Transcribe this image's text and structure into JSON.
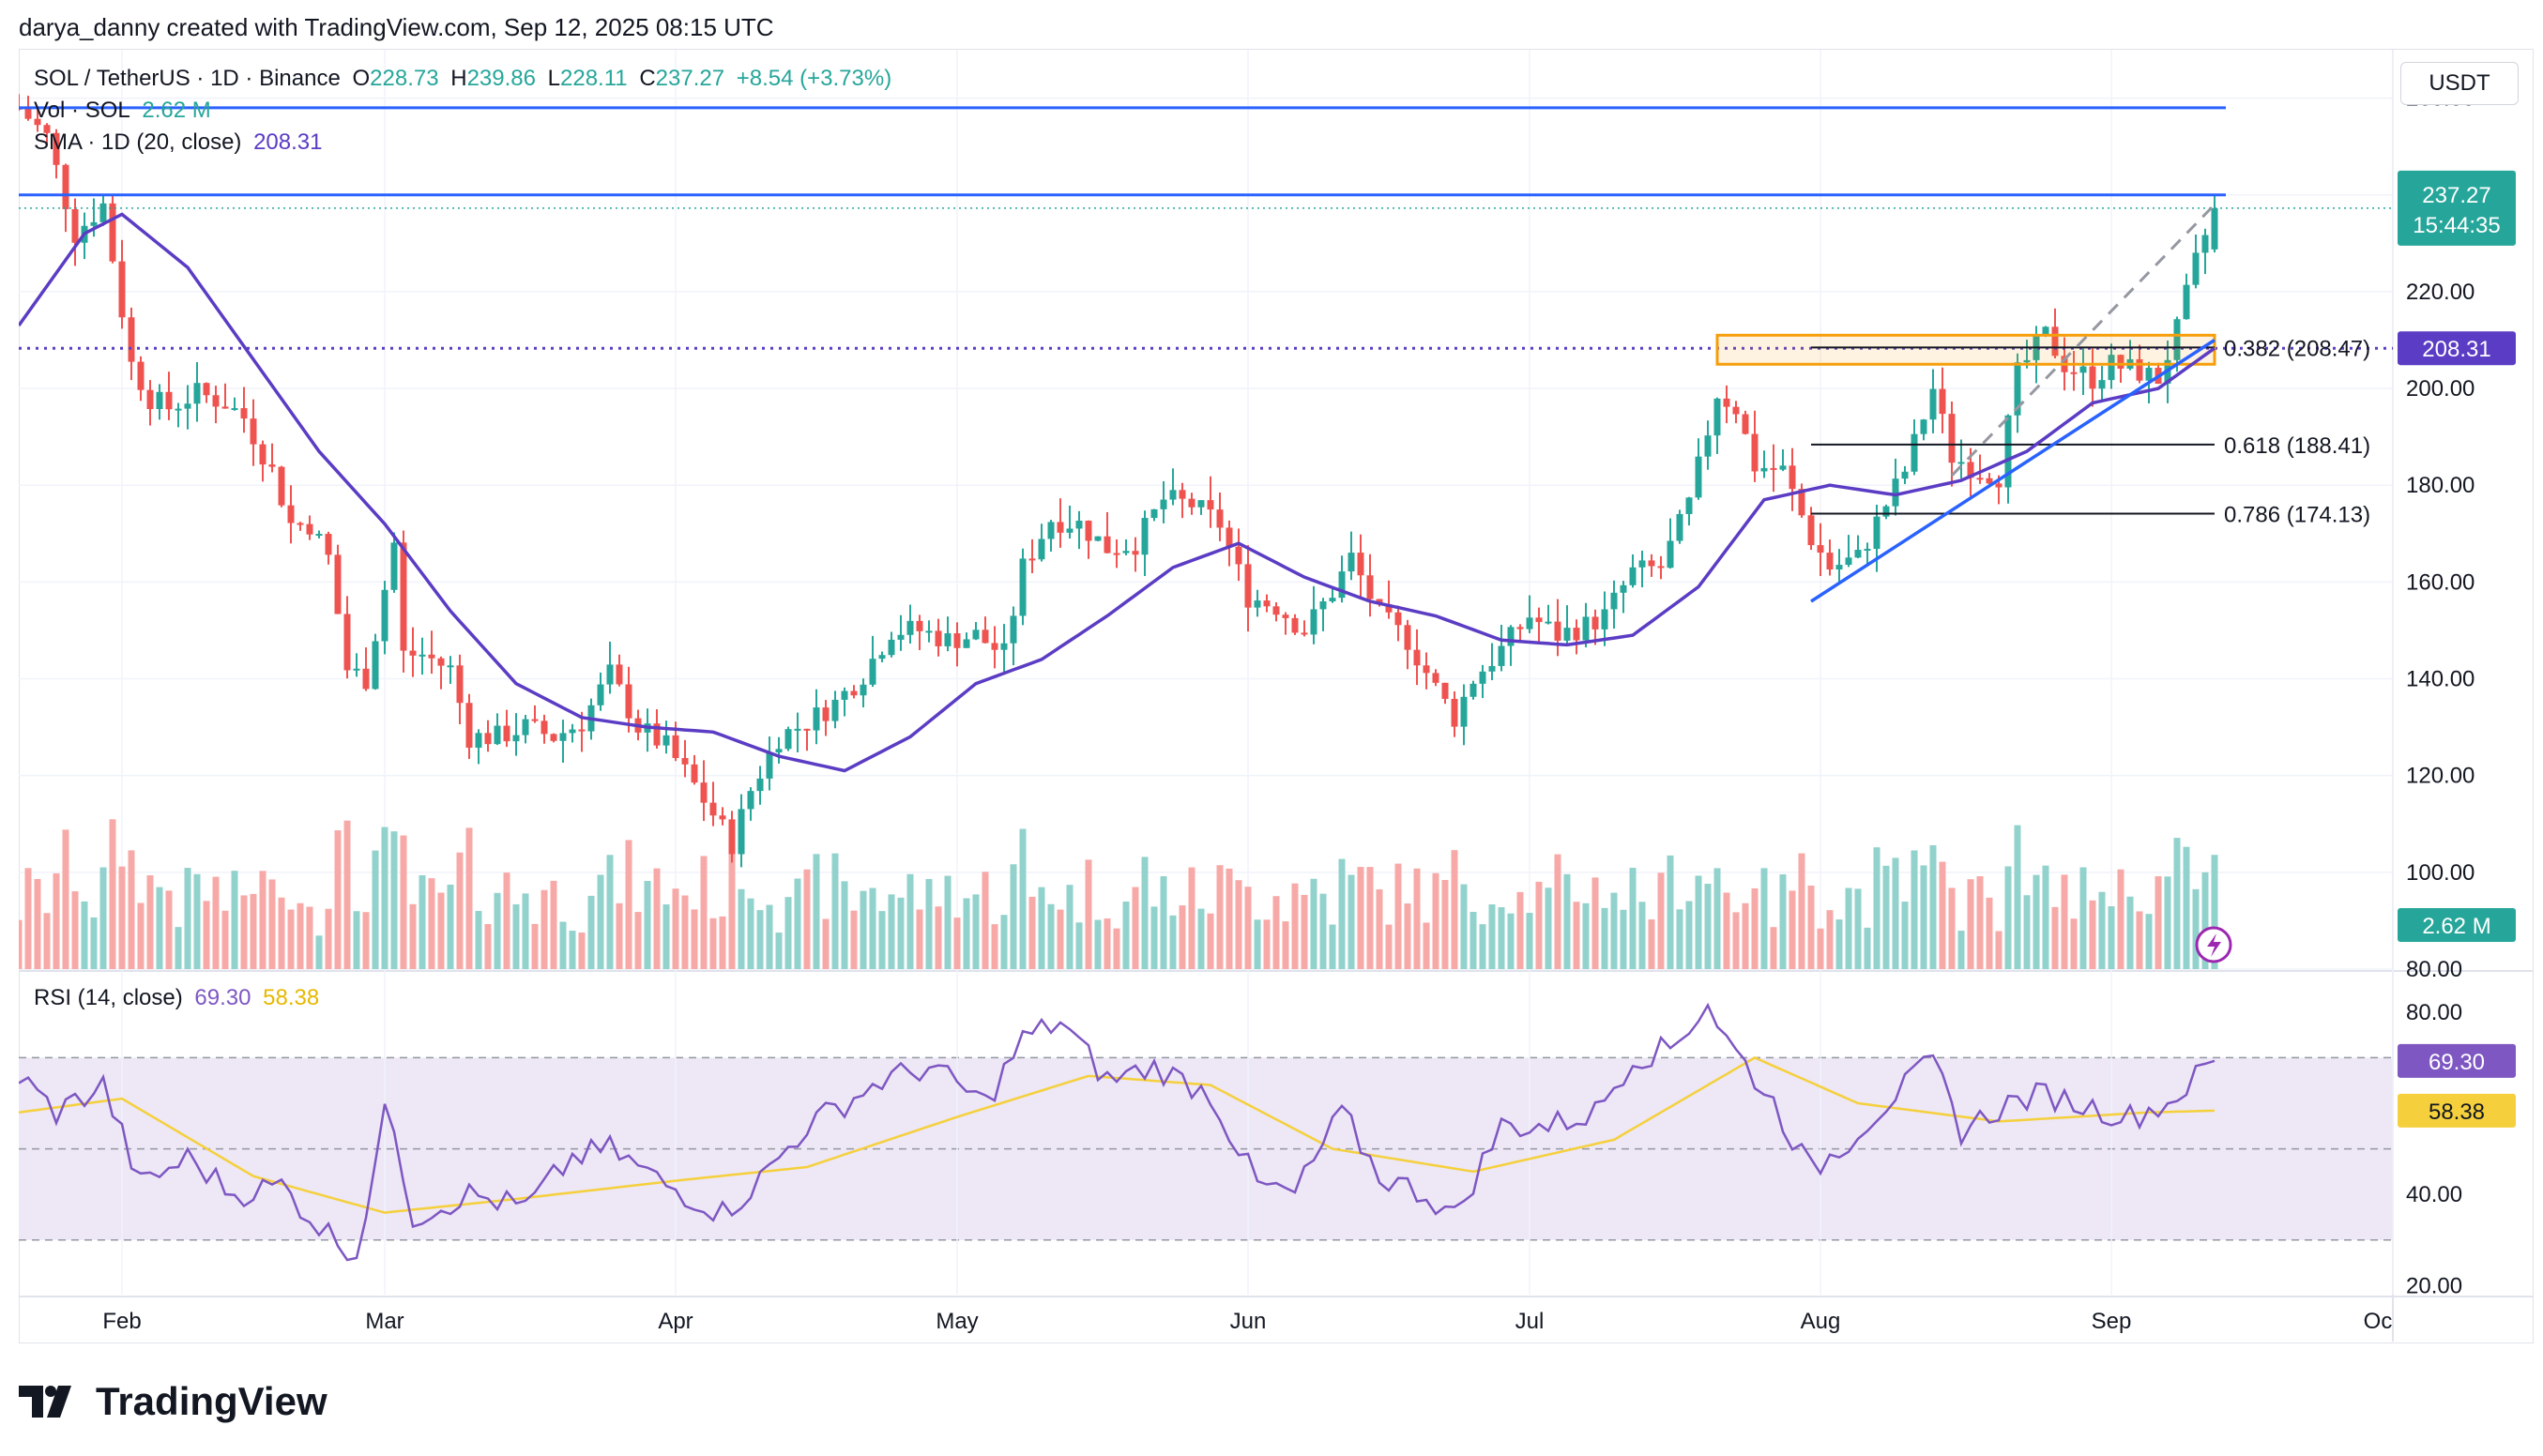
{
  "header": {
    "attribution": "darya_danny created with TradingView.com, Sep 12, 2025 08:15 UTC"
  },
  "legend": {
    "symbol": "SOL / TetherUS · 1D · Binance",
    "o_label": "O",
    "o_value": "228.73",
    "h_label": "H",
    "h_value": "239.86",
    "l_label": "L",
    "l_value": "228.11",
    "c_label": "C",
    "c_value": "237.27",
    "change": "+8.54 (+3.73%)",
    "vol_label": "Vol · SOL",
    "vol_value": "2.62 M",
    "sma_label": "SMA · 1D (20, close)",
    "sma_value": "208.31",
    "rsi_label": "RSI (14, close)",
    "rsi_value": "69.30",
    "rsi_ma_value": "58.38"
  },
  "toolbar": {
    "currency_button": "USDT"
  },
  "price_axis": {
    "ticks": [
      "260.00",
      "220.00",
      "200.00",
      "180.00",
      "160.00",
      "140.00",
      "120.00",
      "100.00",
      "80.00"
    ],
    "last_price_label": "237.27",
    "countdown_label": "15:44:35",
    "sma_label": "208.31",
    "volume_label": "2.62 M"
  },
  "rsi_axis": {
    "ticks": [
      "80.00",
      "40.00",
      "20.00"
    ],
    "rsi_label": "69.30",
    "rsi_ma_label": "58.38"
  },
  "time_axis": {
    "labels": [
      "Feb",
      "Mar",
      "Apr",
      "May",
      "Jun",
      "Jul",
      "Aug",
      "Sep",
      "Oc"
    ]
  },
  "fib_labels": [
    "0.382 (208.47)",
    "0.618 (188.41)",
    "0.786 (174.13)"
  ],
  "brand": {
    "name": "TradingView"
  },
  "colors": {
    "up": "#26a69a",
    "down": "#ef5350",
    "up_vol": "#92d2cc",
    "down_vol": "#f7a9a7",
    "sma": "#5b3cc4",
    "rsi": "#7e57c2",
    "rsi_ma": "#f5d03c",
    "hline": "#2962ff",
    "fib_box": "#f59e0b",
    "rsi_band": "#ede7f6"
  },
  "chart_data": {
    "type": "candlestick",
    "title": "SOL / TetherUS · 1D · Binance",
    "x_range": [
      "2025-01-21",
      "2025-10-01"
    ],
    "y_range": [
      80,
      270
    ],
    "horizontal_lines": [
      258,
      240,
      208.31
    ],
    "fibonacci_levels": [
      {
        "ratio": 0.382,
        "price": 208.47
      },
      {
        "ratio": 0.618,
        "price": 188.41
      },
      {
        "ratio": 0.786,
        "price": 174.13
      }
    ],
    "close_anchors": [
      [
        "2025-01-21",
        258
      ],
      [
        "2025-01-24",
        252
      ],
      [
        "2025-01-27",
        232
      ],
      [
        "2025-01-30",
        238
      ],
      [
        "2025-02-02",
        205
      ],
      [
        "2025-02-04",
        198
      ],
      [
        "2025-02-06",
        196
      ],
      [
        "2025-02-09",
        199
      ],
      [
        "2025-02-12",
        197
      ],
      [
        "2025-02-14",
        194
      ],
      [
        "2025-02-17",
        183
      ],
      [
        "2025-02-19",
        172
      ],
      [
        "2025-02-21",
        172
      ],
      [
        "2025-02-23",
        165
      ],
      [
        "2025-02-25",
        142
      ],
      [
        "2025-02-27",
        140
      ],
      [
        "2025-03-02",
        168
      ],
      [
        "2025-03-03",
        145
      ],
      [
        "2025-03-05",
        145
      ],
      [
        "2025-03-08",
        142
      ],
      [
        "2025-03-10",
        128
      ],
      [
        "2025-03-13",
        128
      ],
      [
        "2025-03-16",
        130
      ],
      [
        "2025-03-19",
        128
      ],
      [
        "2025-03-22",
        131
      ],
      [
        "2025-03-25",
        141
      ],
      [
        "2025-03-28",
        130
      ],
      [
        "2025-03-31",
        126
      ],
      [
        "2025-04-03",
        118
      ],
      [
        "2025-04-07",
        106
      ],
      [
        "2025-04-09",
        117
      ],
      [
        "2025-04-12",
        128
      ],
      [
        "2025-04-15",
        131
      ],
      [
        "2025-04-18",
        135
      ],
      [
        "2025-04-21",
        141
      ],
      [
        "2025-04-24",
        150
      ],
      [
        "2025-04-27",
        150
      ],
      [
        "2025-04-30",
        148
      ],
      [
        "2025-05-03",
        149
      ],
      [
        "2025-05-06",
        145
      ],
      [
        "2025-05-08",
        163
      ],
      [
        "2025-05-11",
        173
      ],
      [
        "2025-05-14",
        172
      ],
      [
        "2025-05-17",
        167
      ],
      [
        "2025-05-20",
        168
      ],
      [
        "2025-05-23",
        177
      ],
      [
        "2025-05-26",
        176
      ],
      [
        "2025-05-29",
        172
      ],
      [
        "2025-06-01",
        157
      ],
      [
        "2025-06-04",
        155
      ],
      [
        "2025-06-07",
        150
      ],
      [
        "2025-06-10",
        158
      ],
      [
        "2025-06-12",
        165
      ],
      [
        "2025-06-15",
        153
      ],
      [
        "2025-06-18",
        148
      ],
      [
        "2025-06-21",
        138
      ],
      [
        "2025-06-23",
        132
      ],
      [
        "2025-06-25",
        140
      ],
      [
        "2025-06-28",
        146
      ],
      [
        "2025-07-01",
        153
      ],
      [
        "2025-07-04",
        149
      ],
      [
        "2025-07-07",
        151
      ],
      [
        "2025-07-09",
        153
      ],
      [
        "2025-07-12",
        162
      ],
      [
        "2025-07-15",
        163
      ],
      [
        "2025-07-18",
        176
      ],
      [
        "2025-07-21",
        199
      ],
      [
        "2025-07-23",
        196
      ],
      [
        "2025-07-25",
        184
      ],
      [
        "2025-07-28",
        183
      ],
      [
        "2025-07-31",
        169
      ],
      [
        "2025-08-02",
        163
      ],
      [
        "2025-08-05",
        165
      ],
      [
        "2025-08-08",
        176
      ],
      [
        "2025-08-10",
        183
      ],
      [
        "2025-08-13",
        200
      ],
      [
        "2025-08-15",
        186
      ],
      [
        "2025-08-18",
        183
      ],
      [
        "2025-08-20",
        182
      ],
      [
        "2025-08-22",
        203
      ],
      [
        "2025-08-25",
        211
      ],
      [
        "2025-08-27",
        205
      ],
      [
        "2025-08-30",
        202
      ],
      [
        "2025-09-01",
        205
      ],
      [
        "2025-09-03",
        204
      ],
      [
        "2025-09-06",
        202
      ],
      [
        "2025-09-08",
        212
      ],
      [
        "2025-09-10",
        226
      ],
      [
        "2025-09-12",
        237.27
      ]
    ],
    "sma20_anchors": [
      [
        "2025-01-21",
        213
      ],
      [
        "2025-01-28",
        232
      ],
      [
        "2025-02-01",
        236
      ],
      [
        "2025-02-08",
        225
      ],
      [
        "2025-02-15",
        206
      ],
      [
        "2025-02-22",
        187
      ],
      [
        "2025-03-01",
        172
      ],
      [
        "2025-03-08",
        154
      ],
      [
        "2025-03-15",
        139
      ],
      [
        "2025-03-22",
        132
      ],
      [
        "2025-03-29",
        130
      ],
      [
        "2025-04-05",
        129
      ],
      [
        "2025-04-12",
        124
      ],
      [
        "2025-04-19",
        121
      ],
      [
        "2025-04-26",
        128
      ],
      [
        "2025-05-03",
        139
      ],
      [
        "2025-05-10",
        144
      ],
      [
        "2025-05-17",
        153
      ],
      [
        "2025-05-24",
        163
      ],
      [
        "2025-05-31",
        168
      ],
      [
        "2025-06-07",
        161
      ],
      [
        "2025-06-14",
        156
      ],
      [
        "2025-06-21",
        153
      ],
      [
        "2025-06-28",
        148
      ],
      [
        "2025-07-05",
        147
      ],
      [
        "2025-07-12",
        149
      ],
      [
        "2025-07-19",
        159
      ],
      [
        "2025-07-26",
        177
      ],
      [
        "2025-08-02",
        180
      ],
      [
        "2025-08-09",
        178
      ],
      [
        "2025-08-16",
        181
      ],
      [
        "2025-08-23",
        187
      ],
      [
        "2025-08-30",
        197
      ],
      [
        "2025-09-06",
        200
      ],
      [
        "2025-09-12",
        208.31
      ]
    ],
    "rsi_anchors": [
      [
        "2025-01-21",
        66
      ],
      [
        "2025-01-25",
        58
      ],
      [
        "2025-01-30",
        64
      ],
      [
        "2025-02-03",
        42
      ],
      [
        "2025-02-08",
        48
      ],
      [
        "2025-02-13",
        40
      ],
      [
        "2025-02-18",
        42
      ],
      [
        "2025-02-22",
        33
      ],
      [
        "2025-02-26",
        27
      ],
      [
        "2025-03-01",
        57
      ],
      [
        "2025-03-02",
        55
      ],
      [
        "2025-03-04",
        35
      ],
      [
        "2025-03-10",
        40
      ],
      [
        "2025-03-16",
        37
      ],
      [
        "2025-03-21",
        48
      ],
      [
        "2025-03-25",
        50
      ],
      [
        "2025-03-31",
        42
      ],
      [
        "2025-04-06",
        36
      ],
      [
        "2025-04-09",
        41
      ],
      [
        "2025-04-15",
        55
      ],
      [
        "2025-04-23",
        65
      ],
      [
        "2025-04-28",
        68
      ],
      [
        "2025-05-04",
        60
      ],
      [
        "2025-05-08",
        74
      ],
      [
        "2025-05-12",
        78
      ],
      [
        "2025-05-17",
        65
      ],
      [
        "2025-05-22",
        68
      ],
      [
        "2025-05-28",
        62
      ],
      [
        "2025-06-02",
        42
      ],
      [
        "2025-06-06",
        40
      ],
      [
        "2025-06-11",
        58
      ],
      [
        "2025-06-15",
        44
      ],
      [
        "2025-06-20",
        40
      ],
      [
        "2025-06-23",
        35
      ],
      [
        "2025-06-28",
        55
      ],
      [
        "2025-07-03",
        55
      ],
      [
        "2025-07-08",
        58
      ],
      [
        "2025-07-12",
        70
      ],
      [
        "2025-07-16",
        72
      ],
      [
        "2025-07-20",
        82
      ],
      [
        "2025-07-22",
        74
      ],
      [
        "2025-07-27",
        60
      ],
      [
        "2025-07-31",
        45
      ],
      [
        "2025-08-03",
        50
      ],
      [
        "2025-08-09",
        62
      ],
      [
        "2025-08-13",
        69
      ],
      [
        "2025-08-16",
        54
      ],
      [
        "2025-08-21",
        60
      ],
      [
        "2025-08-25",
        62
      ],
      [
        "2025-08-30",
        59
      ],
      [
        "2025-09-03",
        57
      ],
      [
        "2025-09-07",
        60
      ],
      [
        "2025-09-12",
        69.3
      ]
    ],
    "rsi_ma_anchors": [
      [
        "2025-01-21",
        58
      ],
      [
        "2025-02-01",
        61
      ],
      [
        "2025-02-15",
        44
      ],
      [
        "2025-03-01",
        36
      ],
      [
        "2025-03-15",
        39
      ],
      [
        "2025-04-01",
        43
      ],
      [
        "2025-04-15",
        46
      ],
      [
        "2025-05-01",
        57
      ],
      [
        "2025-05-15",
        66
      ],
      [
        "2025-05-28",
        64
      ],
      [
        "2025-06-10",
        50
      ],
      [
        "2025-06-25",
        45
      ],
      [
        "2025-07-10",
        52
      ],
      [
        "2025-07-25",
        70
      ],
      [
        "2025-08-05",
        60
      ],
      [
        "2025-08-20",
        56
      ],
      [
        "2025-09-05",
        58
      ],
      [
        "2025-09-12",
        58.38
      ]
    ],
    "trendline": [
      [
        "2025-07-31",
        156
      ],
      [
        "2025-09-12",
        210
      ]
    ],
    "projection": [
      [
        "2025-08-15",
        182
      ],
      [
        "2025-09-12",
        238
      ]
    ],
    "fib_box": {
      "x0": "2025-07-21",
      "x1": "2025-09-12",
      "y_top": 211,
      "y_bottom": 205
    },
    "rsi_range": [
      18,
      88
    ],
    "rsi_levels": [
      70,
      50,
      30
    ]
  }
}
